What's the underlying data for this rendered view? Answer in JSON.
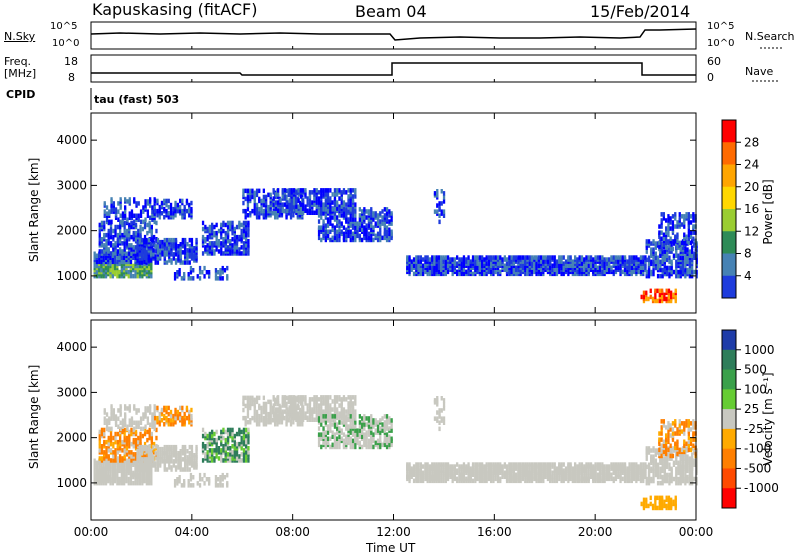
{
  "header": {
    "station": "Kapuskasing (fitACF)",
    "beam": "Beam 04",
    "date": "15/Feb/2014"
  },
  "small_panels": {
    "nsky_label": "N.Sky",
    "nsky_ticks": [
      "10^5",
      "10^0"
    ],
    "nsearch_label": "N.Search",
    "nsearch_ticks": [
      "10^5",
      "10^0"
    ],
    "freq_label_line1": "Freq.",
    "freq_label_line2": "[MHz]",
    "freq_ticks": [
      "18",
      "8"
    ],
    "nave_label": "Nave",
    "nave_ticks": [
      "60",
      "0"
    ],
    "cpid_label": "CPID",
    "cpid_value": "tau (fast) 503"
  },
  "colorbars": {
    "power": {
      "label": "Power [dB]",
      "ticks": [
        "28",
        "24",
        "20",
        "16",
        "12",
        "8",
        "4"
      ],
      "colors": [
        "#ff0000",
        "#ff6a00",
        "#ffa500",
        "#ffd700",
        "#9acd32",
        "#2e8b57",
        "#4682b4",
        "#1e3cdc",
        "#0000ff"
      ]
    },
    "velocity": {
      "label": "Velocity [m s⁻¹]",
      "ticks": [
        "1000",
        "500",
        "100",
        "25",
        "-25",
        "-100",
        "-500",
        "-1000"
      ],
      "colors": [
        "#1f3ca8",
        "#2e7d5a",
        "#3aa04a",
        "#66cc33",
        "#c8c8c0",
        "#ffaa00",
        "#ff7f00",
        "#ff4a00",
        "#ff0000"
      ]
    }
  },
  "chart_data": [
    {
      "type": "heatmap",
      "title": "Power",
      "ylabel": "Slant Range [km]",
      "xlabel": "Time UT",
      "x_ticks": [
        "00:00",
        "04:00",
        "08:00",
        "12:00",
        "16:00",
        "20:00",
        "00:00"
      ],
      "y_ticks": [
        "1000",
        "2000",
        "3000",
        "4000"
      ],
      "xlim_hours": [
        0,
        24
      ],
      "ylim_km": [
        180,
        4600
      ],
      "colorbar_range_db": [
        0,
        30
      ]
    },
    {
      "type": "heatmap",
      "title": "Velocity",
      "ylabel": "Slant Range [km]",
      "xlabel": "Time UT",
      "x_ticks": [
        "00:00",
        "04:00",
        "08:00",
        "12:00",
        "16:00",
        "20:00",
        "00:00"
      ],
      "y_ticks": [
        "1000",
        "2000",
        "3000",
        "4000"
      ],
      "xlim_hours": [
        0,
        24
      ],
      "ylim_km": [
        180,
        4600
      ],
      "colorbar_range_ms": [
        -1000,
        1000
      ]
    }
  ],
  "axis": {
    "x_title": "Time UT"
  }
}
